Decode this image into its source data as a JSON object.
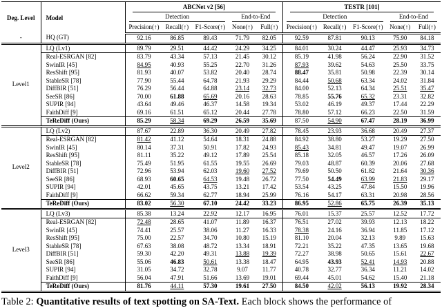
{
  "table": {
    "header": {
      "deg_level": "Deg. Level",
      "model": "Model",
      "group1": "ABCNet v2 [56]",
      "group2": "TESTR [101]",
      "detection": "Detection",
      "end_to_end": "End-to-End",
      "metrics": [
        "Precision(↑)",
        "Recall(↑)",
        "F1-Score(↑)",
        "None(↑)",
        "Full(↑)"
      ]
    },
    "blocks": [
      {
        "deg_level": "-",
        "rows": [
          {
            "model": "HQ (GT)",
            "values": [
              "92.16",
              "86.85",
              "89.43",
              "71.79",
              "82.05",
              "92.59",
              "87.81",
              "90.13",
              "75.90",
              "84.18"
            ]
          }
        ]
      },
      {
        "deg_level": "Level1",
        "rows": [
          {
            "model": "LQ (Lv1)",
            "values": [
              "89.79",
              "29.51",
              "44.42",
              "24.29",
              "34.25",
              "84.01",
              "30.24",
              "44.47",
              "25.93",
              "34.73"
            ]
          },
          {
            "model": "Real-ESRGAN [82]",
            "values": [
              "83.79",
              "43.34",
              "57.13",
              "21.45",
              "30.12",
              "85.19",
              "41.98",
              "56.24",
              "22.90",
              "31.52"
            ]
          },
          {
            "model": "SwinIR [45]",
            "values": [
              "84.95",
              "40.93",
              "55.25",
              "22.70",
              "31.26",
              "87.93",
              "39.62",
              "54.63",
              "25.50",
              "33.75"
            ],
            "styles": [
              "u",
              "",
              "",
              "",
              "",
              "u",
              "",
              "",
              "",
              ""
            ]
          },
          {
            "model": "ResShift [95]",
            "values": [
              "81.93",
              "40.07",
              "53.82",
              "20.40",
              "28.74",
              "88.47",
              "35.81",
              "50.98",
              "22.39",
              "30.14"
            ],
            "styles": [
              "",
              "",
              "",
              "",
              "",
              "b",
              "",
              "",
              "",
              ""
            ]
          },
          {
            "model": "StableSR [78]",
            "values": [
              "77.90",
              "55.44",
              "64.78",
              "21.93",
              "29.29",
              "84.44",
              "50.68",
              "63.34",
              "24.02",
              "31.84"
            ],
            "styles": [
              "",
              "",
              "",
              "",
              "",
              "",
              "u",
              "",
              "",
              ""
            ]
          },
          {
            "model": "DiffBIR [51]",
            "values": [
              "76.29",
              "56.44",
              "64.88",
              "23.14",
              "32.73",
              "84.00",
              "52.13",
              "64.34",
              "25.51",
              "35.47"
            ],
            "styles": [
              "",
              "",
              "",
              "u",
              "u",
              "",
              "",
              "",
              "u",
              "u"
            ]
          },
          {
            "model": "SeeSR [86]",
            "values": [
              "70.00",
              "61.88",
              "65.69",
              "20.16",
              "28.63",
              "78.85",
              "55.76",
              "65.32",
              "23.31",
              "32.82"
            ],
            "styles": [
              "",
              "b",
              "u",
              "",
              "",
              "",
              "b",
              "u",
              "",
              ""
            ]
          },
          {
            "model": "SUPIR [94]",
            "values": [
              "43.64",
              "49.46",
              "46.37",
              "14.58",
              "19.34",
              "53.02",
              "46.19",
              "49.37",
              "17.44",
              "22.29"
            ]
          },
          {
            "model": "FaithDiff [9]",
            "values": [
              "69.16",
              "61.51",
              "65.12",
              "20.44",
              "27.78",
              "78.80",
              "57.12",
              "66.23",
              "22.50",
              "31.59"
            ]
          },
          {
            "model": "TeReDiff (Ours)",
            "bold": true,
            "values": [
              "85.29",
              "58.34",
              "69.29",
              "26.59",
              "35.69",
              "87.50",
              "54.90",
              "67.47",
              "28.19",
              "36.99"
            ],
            "styles": [
              "b",
              "u",
              "b",
              "b",
              "b",
              "",
              "u",
              "b",
              "b",
              "b"
            ]
          }
        ]
      },
      {
        "deg_level": "Level2",
        "rows": [
          {
            "model": "LQ (Lv2)",
            "values": [
              "87.67",
              "22.89",
              "36.30",
              "20.49",
              "27.82",
              "78.45",
              "23.93",
              "36.68",
              "20.49",
              "27.37"
            ]
          },
          {
            "model": "Real-ESRGAN [82]",
            "values": [
              "81.42",
              "41.12",
              "54.64",
              "18.31",
              "24.88",
              "84.92",
              "38.80",
              "53.27",
              "19.29",
              "27.50"
            ],
            "styles": [
              "u",
              "",
              "",
              "",
              "",
              "",
              "",
              "",
              "",
              ""
            ]
          },
          {
            "model": "SwinIR [45]",
            "values": [
              "80.14",
              "37.31",
              "50.91",
              "17.82",
              "24.93",
              "85.43",
              "34.81",
              "49.47",
              "19.07",
              "26.99"
            ],
            "styles": [
              "",
              "",
              "",
              "",
              "",
              "u",
              "",
              "",
              "",
              ""
            ]
          },
          {
            "model": "ResShift [95]",
            "values": [
              "81.11",
              "35.22",
              "49.12",
              "17.89",
              "25.54",
              "85.18",
              "32.05",
              "46.57",
              "17.26",
              "26.09"
            ]
          },
          {
            "model": "StableSR [78]",
            "values": [
              "75.49",
              "51.95",
              "61.55",
              "19.55",
              "26.69",
              "79.03",
              "48.87",
              "60.39",
              "20.06",
              "27.68"
            ]
          },
          {
            "model": "DiffBIR [51]",
            "values": [
              "72.96",
              "53.94",
              "62.03",
              "19.60",
              "27.52",
              "79.69",
              "50.50",
              "61.82",
              "21.64",
              "30.36"
            ],
            "styles": [
              "",
              "",
              "",
              "u",
              "u",
              "",
              "",
              "",
              "",
              "u"
            ]
          },
          {
            "model": "SeeSR [86]",
            "values": [
              "68.93",
              "60.65",
              "64.53",
              "19.48",
              "26.72",
              "77.50",
              "54.49",
              "63.99",
              "21.83",
              "29.17"
            ],
            "styles": [
              "",
              "b",
              "u",
              "",
              "",
              "",
              "b",
              "u",
              "u",
              ""
            ]
          },
          {
            "model": "SUPIR [94]",
            "values": [
              "42.01",
              "45.65",
              "43.75",
              "13.21",
              "17.42",
              "53.54",
              "43.25",
              "47.84",
              "15.50",
              "19.96"
            ]
          },
          {
            "model": "FaithDiff [9]",
            "values": [
              "66.62",
              "59.34",
              "62.77",
              "18.94",
              "25.99",
              "76.16",
              "54.17",
              "63.31",
              "20.98",
              "28.56"
            ]
          },
          {
            "model": "TeReDiff (Ours)",
            "bold": true,
            "values": [
              "83.02",
              "56.30",
              "67.10",
              "24.42",
              "33.23",
              "86.95",
              "52.86",
              "65.75",
              "26.39",
              "35.13"
            ],
            "styles": [
              "b",
              "u",
              "b",
              "b",
              "b",
              "b",
              "u",
              "b",
              "b",
              "b"
            ]
          }
        ]
      },
      {
        "deg_level": "Level3",
        "rows": [
          {
            "model": "LQ (Lv3)",
            "values": [
              "85.38",
              "13.24",
              "22.92",
              "12.17",
              "16.95",
              "76.01",
              "15.37",
              "25.57",
              "12.52",
              "17.72"
            ]
          },
          {
            "model": "Real-ESRGAN [82]",
            "values": [
              "72.48",
              "28.65",
              "41.07",
              "11.89",
              "16.37",
              "76.51",
              "27.02",
              "39.93",
              "12.13",
              "18.22"
            ],
            "styles": [
              "u",
              "",
              "",
              "",
              "",
              "",
              "",
              "",
              "",
              ""
            ]
          },
          {
            "model": "SwinIR [45]",
            "values": [
              "74.41",
              "25.57",
              "38.06",
              "11.27",
              "16.33",
              "78.38",
              "24.16",
              "36.94",
              "11.85",
              "17.12"
            ],
            "styles": [
              "",
              "",
              "",
              "",
              "",
              "u",
              "",
              "",
              "",
              ""
            ]
          },
          {
            "model": "ResShift [95]",
            "values": [
              "75.00",
              "22.57",
              "34.70",
              "10.80",
              "15.19",
              "81.10",
              "20.04",
              "32.13",
              "9.89",
              "15.63"
            ]
          },
          {
            "model": "StableSR [78]",
            "values": [
              "67.63",
              "38.08",
              "48.72",
              "13.34",
              "18.91",
              "72.21",
              "35.22",
              "47.35",
              "13.65",
              "19.68"
            ]
          },
          {
            "model": "DiffBIR [51]",
            "values": [
              "59.30",
              "42.20",
              "49.31",
              "13.88",
              "19.39",
              "72.27",
              "38.98",
              "50.65",
              "15.61",
              "22.67"
            ],
            "styles": [
              "",
              "",
              "",
              "u",
              "u",
              "",
              "",
              "",
              "",
              "u"
            ]
          },
          {
            "model": "SeeSR [86]",
            "values": [
              "55.06",
              "46.83",
              "50.61",
              "13.38",
              "18.47",
              "64.95",
              "43.93",
              "52.41",
              "14.93",
              "20.88"
            ],
            "styles": [
              "",
              "b",
              "u",
              "",
              "",
              "",
              "b",
              "u",
              "u",
              ""
            ]
          },
          {
            "model": "SUPIR [94]",
            "values": [
              "31.05",
              "34.72",
              "32.78",
              "9.07",
              "11.77",
              "40.78",
              "32.77",
              "36.34",
              "11.21",
              "14.02"
            ]
          },
          {
            "model": "FaithDiff [9]",
            "values": [
              "56.04",
              "47.91",
              "51.66",
              "13.69",
              "19.01",
              "69.44",
              "45.01",
              "54.62",
              "15.40",
              "21.18"
            ]
          },
          {
            "model": "TeReDiff (Ours)",
            "bold": true,
            "values": [
              "81.76",
              "44.11",
              "57.30",
              "19.61",
              "27.50",
              "84.50",
              "42.02",
              "56.13",
              "19.92",
              "28.34"
            ],
            "styles": [
              "b",
              "u",
              "b",
              "b",
              "b",
              "b",
              "u",
              "b",
              "b",
              "b"
            ]
          }
        ]
      }
    ]
  },
  "caption": {
    "prefix": "Table 2: ",
    "bold_text": "Quantitative results of text spotting on SA-Text.",
    "rest": " Each block shows the performance of"
  }
}
